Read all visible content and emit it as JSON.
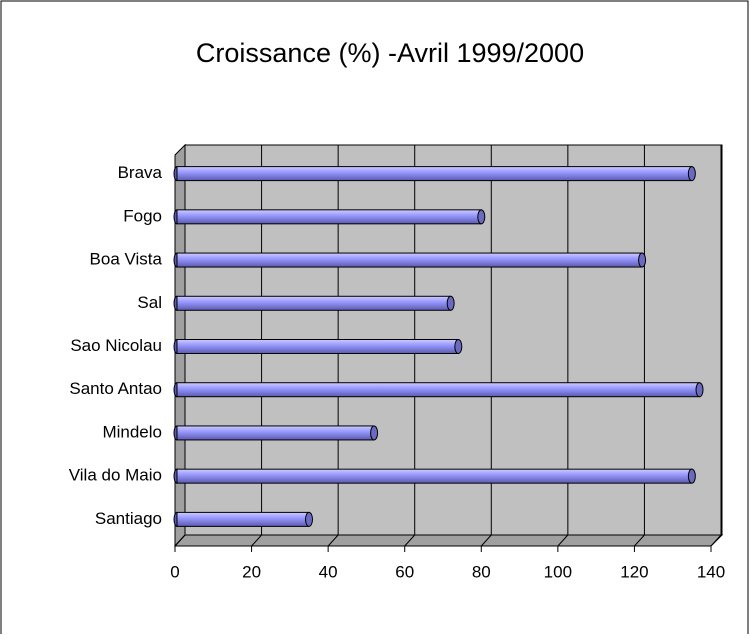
{
  "chart_data": {
    "type": "bar",
    "orientation": "horizontal",
    "title": "Croissance (%) -Avril 1999/2000",
    "categories": [
      "Brava",
      "Fogo",
      "Boa Vista",
      "Sal",
      "Sao Nicolau",
      "Santo Antao",
      "Mindelo",
      "Vila do Maio",
      "Santiago"
    ],
    "values": [
      135,
      80,
      122,
      72,
      74,
      137,
      52,
      135,
      35
    ],
    "color": "#9999ff",
    "xlim": [
      0,
      140
    ],
    "xticks": [
      0,
      20,
      40,
      60,
      80,
      100,
      120,
      140
    ],
    "grid": true
  }
}
